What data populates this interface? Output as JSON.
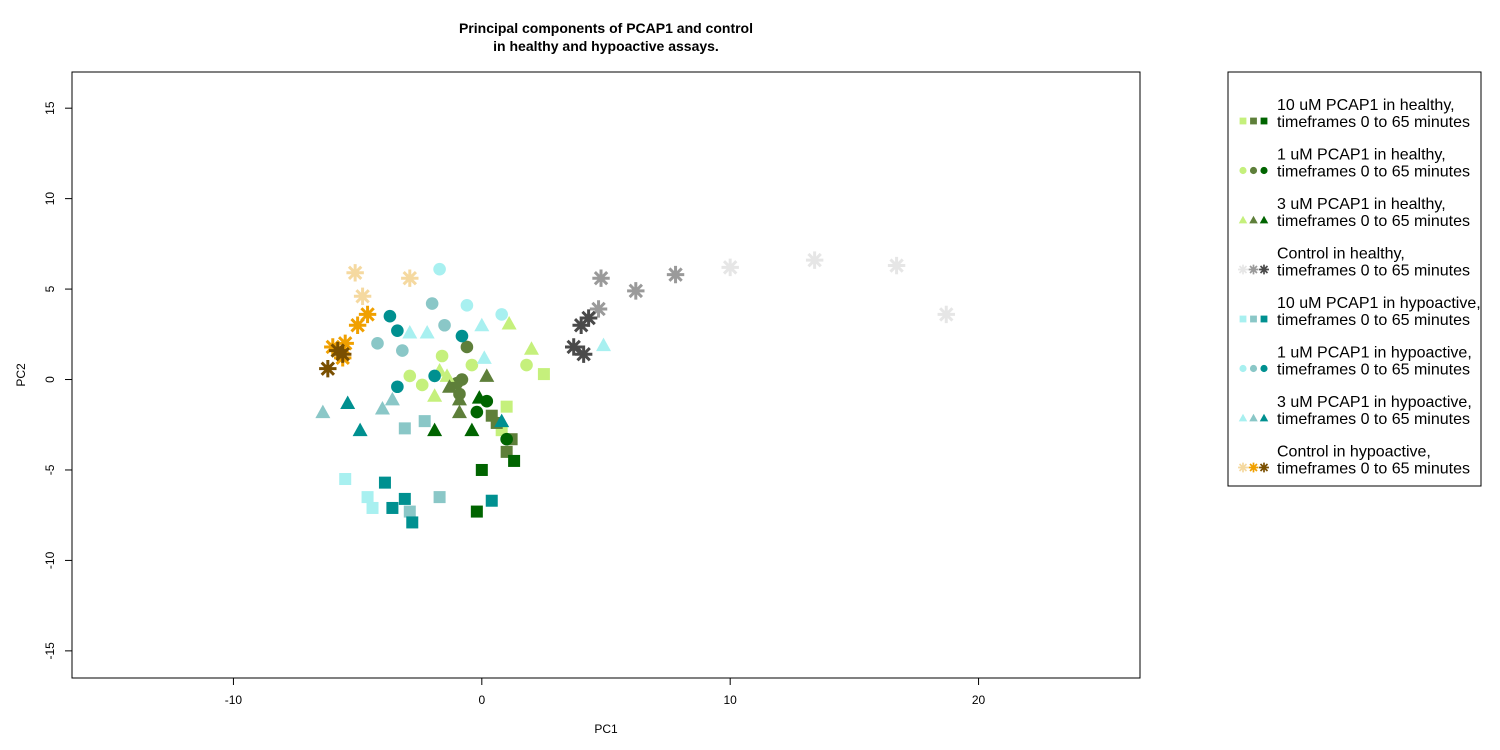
{
  "chart_data": {
    "type": "scatter",
    "title_line1": "Principal components of PCAP1 and control",
    "title_line2": "in healthy and hypoactive assays.",
    "xlabel": "PC1",
    "ylabel": "PC2",
    "xlim": [
      -16.5,
      26.5
    ],
    "ylim": [
      -16.5,
      17
    ],
    "xticks": [
      -10,
      0,
      10,
      20
    ],
    "yticks": [
      -15,
      -10,
      -5,
      0,
      5,
      10,
      15
    ],
    "grid": false,
    "legend_position": "right",
    "series": [
      {
        "legend_line1": "10 uM PCAP1 in healthy,",
        "legend_line2": "timeframes 0 to 65 minutes",
        "marker": "square",
        "colors": [
          "#c5f07c",
          "#5e7f3a",
          "#006400"
        ],
        "points": [
          {
            "x": 2.5,
            "y": 0.3,
            "c": 0
          },
          {
            "x": 1.0,
            "y": -1.5,
            "c": 0
          },
          {
            "x": 0.8,
            "y": -2.8,
            "c": 0
          },
          {
            "x": 0.4,
            "y": -2.0,
            "c": 1
          },
          {
            "x": 1.2,
            "y": -3.3,
            "c": 1
          },
          {
            "x": 0.6,
            "y": -2.4,
            "c": 1
          },
          {
            "x": 1.0,
            "y": -4.0,
            "c": 1
          },
          {
            "x": 1.3,
            "y": -4.5,
            "c": 2
          },
          {
            "x": 0.0,
            "y": -5.0,
            "c": 2
          },
          {
            "x": -0.2,
            "y": -7.3,
            "c": 2
          }
        ]
      },
      {
        "legend_line1": "1 uM PCAP1 in healthy,",
        "legend_line2": "timeframes 0 to 65 minutes",
        "marker": "circle",
        "colors": [
          "#c5f07c",
          "#5e7f3a",
          "#006400"
        ],
        "points": [
          {
            "x": -1.6,
            "y": 1.3,
            "c": 0
          },
          {
            "x": -0.4,
            "y": 0.8,
            "c": 0
          },
          {
            "x": 1.8,
            "y": 0.8,
            "c": 0
          },
          {
            "x": -2.9,
            "y": 0.2,
            "c": 0
          },
          {
            "x": -2.4,
            "y": -0.3,
            "c": 0
          },
          {
            "x": -0.6,
            "y": 1.8,
            "c": 1
          },
          {
            "x": -1.0,
            "y": -0.2,
            "c": 1
          },
          {
            "x": -0.9,
            "y": -0.8,
            "c": 1
          },
          {
            "x": -0.8,
            "y": 0.0,
            "c": 1
          },
          {
            "x": 0.2,
            "y": -1.2,
            "c": 2
          },
          {
            "x": -0.2,
            "y": -1.8,
            "c": 2
          },
          {
            "x": 1.0,
            "y": -3.3,
            "c": 2
          }
        ]
      },
      {
        "legend_line1": "3 uM PCAP1 in healthy,",
        "legend_line2": "timeframes 0 to 65 minutes",
        "marker": "triangle",
        "colors": [
          "#c5f07c",
          "#5e7f3a",
          "#006400"
        ],
        "points": [
          {
            "x": 1.1,
            "y": 3.1,
            "c": 0
          },
          {
            "x": 2.0,
            "y": 1.7,
            "c": 0
          },
          {
            "x": -1.7,
            "y": 0.5,
            "c": 0
          },
          {
            "x": -1.4,
            "y": 0.2,
            "c": 0
          },
          {
            "x": -1.9,
            "y": -0.9,
            "c": 0
          },
          {
            "x": 0.2,
            "y": 0.2,
            "c": 1
          },
          {
            "x": -0.9,
            "y": -1.1,
            "c": 1
          },
          {
            "x": -1.3,
            "y": -0.4,
            "c": 1
          },
          {
            "x": -0.9,
            "y": -1.8,
            "c": 1
          },
          {
            "x": -1.9,
            "y": -2.8,
            "c": 2
          },
          {
            "x": -0.4,
            "y": -2.8,
            "c": 2
          },
          {
            "x": -0.1,
            "y": -1.0,
            "c": 2
          }
        ]
      },
      {
        "legend_line1": "Control in healthy,",
        "legend_line2": "timeframes 0 to 65 minutes",
        "marker": "star",
        "colors": [
          "#e6e6e6",
          "#9a9a9a",
          "#4a4a4a"
        ],
        "points": [
          {
            "x": 18.7,
            "y": 3.6,
            "c": 0
          },
          {
            "x": 16.7,
            "y": 6.3,
            "c": 0
          },
          {
            "x": 13.4,
            "y": 6.6,
            "c": 0
          },
          {
            "x": 10.0,
            "y": 6.2,
            "c": 0
          },
          {
            "x": 7.8,
            "y": 5.8,
            "c": 1
          },
          {
            "x": 6.2,
            "y": 4.9,
            "c": 1
          },
          {
            "x": 4.8,
            "y": 5.6,
            "c": 1
          },
          {
            "x": 4.7,
            "y": 3.9,
            "c": 1
          },
          {
            "x": 4.3,
            "y": 3.4,
            "c": 2
          },
          {
            "x": 4.0,
            "y": 3.0,
            "c": 2
          },
          {
            "x": 3.7,
            "y": 1.8,
            "c": 2
          },
          {
            "x": 4.1,
            "y": 1.4,
            "c": 2
          }
        ]
      },
      {
        "legend_line1": "10 uM PCAP1 in hypoactive,",
        "legend_line2": "timeframes 0 to 65 minutes",
        "marker": "square",
        "colors": [
          "#a8f0f0",
          "#8ac7c7",
          "#009090"
        ],
        "points": [
          {
            "x": -5.5,
            "y": -5.5,
            "c": 0
          },
          {
            "x": -4.6,
            "y": -6.5,
            "c": 0
          },
          {
            "x": -4.4,
            "y": -7.1,
            "c": 0
          },
          {
            "x": -3.1,
            "y": -2.7,
            "c": 1
          },
          {
            "x": -2.3,
            "y": -2.3,
            "c": 1
          },
          {
            "x": -1.7,
            "y": -6.5,
            "c": 1
          },
          {
            "x": -2.9,
            "y": -7.3,
            "c": 1
          },
          {
            "x": -3.9,
            "y": -5.7,
            "c": 2
          },
          {
            "x": -3.6,
            "y": -7.1,
            "c": 2
          },
          {
            "x": -3.1,
            "y": -6.6,
            "c": 2
          },
          {
            "x": -2.8,
            "y": -7.9,
            "c": 2
          },
          {
            "x": 0.4,
            "y": -6.7,
            "c": 2
          }
        ]
      },
      {
        "legend_line1": "1 uM PCAP1 in hypoactive,",
        "legend_line2": "timeframes 0 to 65 minutes",
        "marker": "circle",
        "colors": [
          "#a8f0f0",
          "#8ac7c7",
          "#009090"
        ],
        "points": [
          {
            "x": -1.7,
            "y": 6.1,
            "c": 0
          },
          {
            "x": -0.6,
            "y": 4.1,
            "c": 0
          },
          {
            "x": 0.8,
            "y": 3.6,
            "c": 0
          },
          {
            "x": -2.0,
            "y": 4.2,
            "c": 1
          },
          {
            "x": -1.5,
            "y": 3.0,
            "c": 1
          },
          {
            "x": -3.2,
            "y": 1.6,
            "c": 1
          },
          {
            "x": -4.2,
            "y": 2.0,
            "c": 1
          },
          {
            "x": -3.7,
            "y": 3.5,
            "c": 2
          },
          {
            "x": -3.4,
            "y": 2.7,
            "c": 2
          },
          {
            "x": -0.8,
            "y": 2.4,
            "c": 2
          },
          {
            "x": -3.4,
            "y": -0.4,
            "c": 2
          },
          {
            "x": -1.9,
            "y": 0.2,
            "c": 2
          }
        ]
      },
      {
        "legend_line1": "3 uM PCAP1 in hypoactive,",
        "legend_line2": "timeframes 0 to 65 minutes",
        "marker": "triangle",
        "colors": [
          "#a8f0f0",
          "#8ac7c7",
          "#009090"
        ],
        "points": [
          {
            "x": 0.0,
            "y": 3.0,
            "c": 0
          },
          {
            "x": 0.1,
            "y": 1.2,
            "c": 0
          },
          {
            "x": 4.9,
            "y": 1.9,
            "c": 0
          },
          {
            "x": -2.9,
            "y": 2.6,
            "c": 0
          },
          {
            "x": -2.2,
            "y": 2.6,
            "c": 0
          },
          {
            "x": -4.0,
            "y": -1.6,
            "c": 1
          },
          {
            "x": -6.4,
            "y": -1.8,
            "c": 1
          },
          {
            "x": -3.6,
            "y": -1.1,
            "c": 1
          },
          {
            "x": -5.4,
            "y": -1.3,
            "c": 2
          },
          {
            "x": -4.9,
            "y": -2.8,
            "c": 2
          },
          {
            "x": 0.8,
            "y": -2.3,
            "c": 2
          }
        ]
      },
      {
        "legend_line1": "Control in hypoactive,",
        "legend_line2": "timeframes 0 to 65 minutes",
        "marker": "star",
        "colors": [
          "#f5d9a0",
          "#f0a000",
          "#7a4f00"
        ],
        "points": [
          {
            "x": -5.1,
            "y": 5.9,
            "c": 0
          },
          {
            "x": -2.9,
            "y": 5.6,
            "c": 0
          },
          {
            "x": -4.8,
            "y": 4.6,
            "c": 0
          },
          {
            "x": -4.6,
            "y": 3.6,
            "c": 1
          },
          {
            "x": -5.0,
            "y": 3.0,
            "c": 1
          },
          {
            "x": -5.5,
            "y": 2.0,
            "c": 1
          },
          {
            "x": -5.6,
            "y": 1.2,
            "c": 1
          },
          {
            "x": -6.0,
            "y": 1.8,
            "c": 1
          },
          {
            "x": -5.8,
            "y": 1.6,
            "c": 2
          },
          {
            "x": -5.6,
            "y": 1.4,
            "c": 2
          },
          {
            "x": -6.2,
            "y": 0.6,
            "c": 2
          }
        ]
      }
    ]
  }
}
